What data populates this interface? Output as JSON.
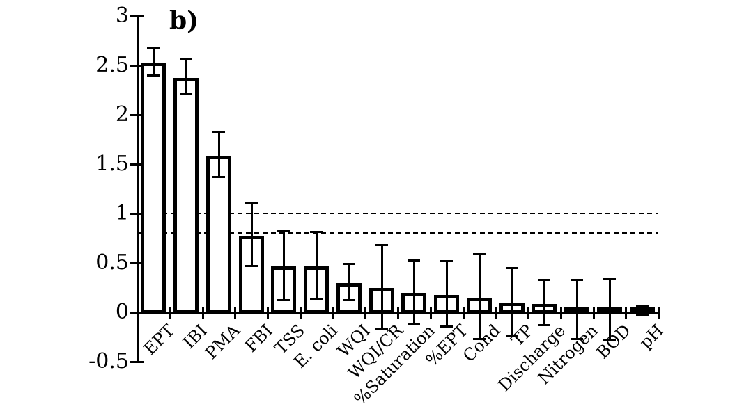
{
  "figure": {
    "panel_label": "b)",
    "background_color": "#ffffff",
    "foreground_color": "#000000"
  },
  "chart_data": {
    "type": "bar",
    "title": "b)",
    "xlabel": "",
    "ylabel": "",
    "legend": "none",
    "grid": "off (two dashed horizontal reference lines only)",
    "bar_fill": "#ffffff",
    "bar_border": "#000000",
    "ylim": [
      -0.5,
      3
    ],
    "yticks": [
      3,
      2.5,
      2,
      1.5,
      1,
      0.5,
      0,
      -0.5
    ],
    "ytick_labels": [
      "3",
      "2.5",
      "2",
      "1.5",
      "1",
      "0.5",
      "0",
      "-0.5"
    ],
    "reference_lines": [
      1.0,
      0.8
    ],
    "categories": [
      "EPT",
      "IBI",
      "PMA",
      "FBI",
      "TSS",
      "E. coli",
      "WQI",
      "WQI/CR",
      "%Saturation",
      "%EPT",
      "Cond",
      "TP",
      "Discharge",
      "Nitrogen",
      "BOD",
      "pH"
    ],
    "values": [
      2.54,
      2.39,
      1.6,
      0.79,
      0.48,
      0.48,
      0.31,
      0.26,
      0.21,
      0.19,
      0.16,
      0.11,
      0.1,
      0.03,
      0.03,
      0.02
    ],
    "error_bars": [
      0.14,
      0.18,
      0.23,
      0.32,
      0.35,
      0.34,
      0.18,
      0.42,
      0.32,
      0.33,
      0.43,
      0.34,
      0.23,
      0.3,
      0.31,
      0.04
    ]
  }
}
